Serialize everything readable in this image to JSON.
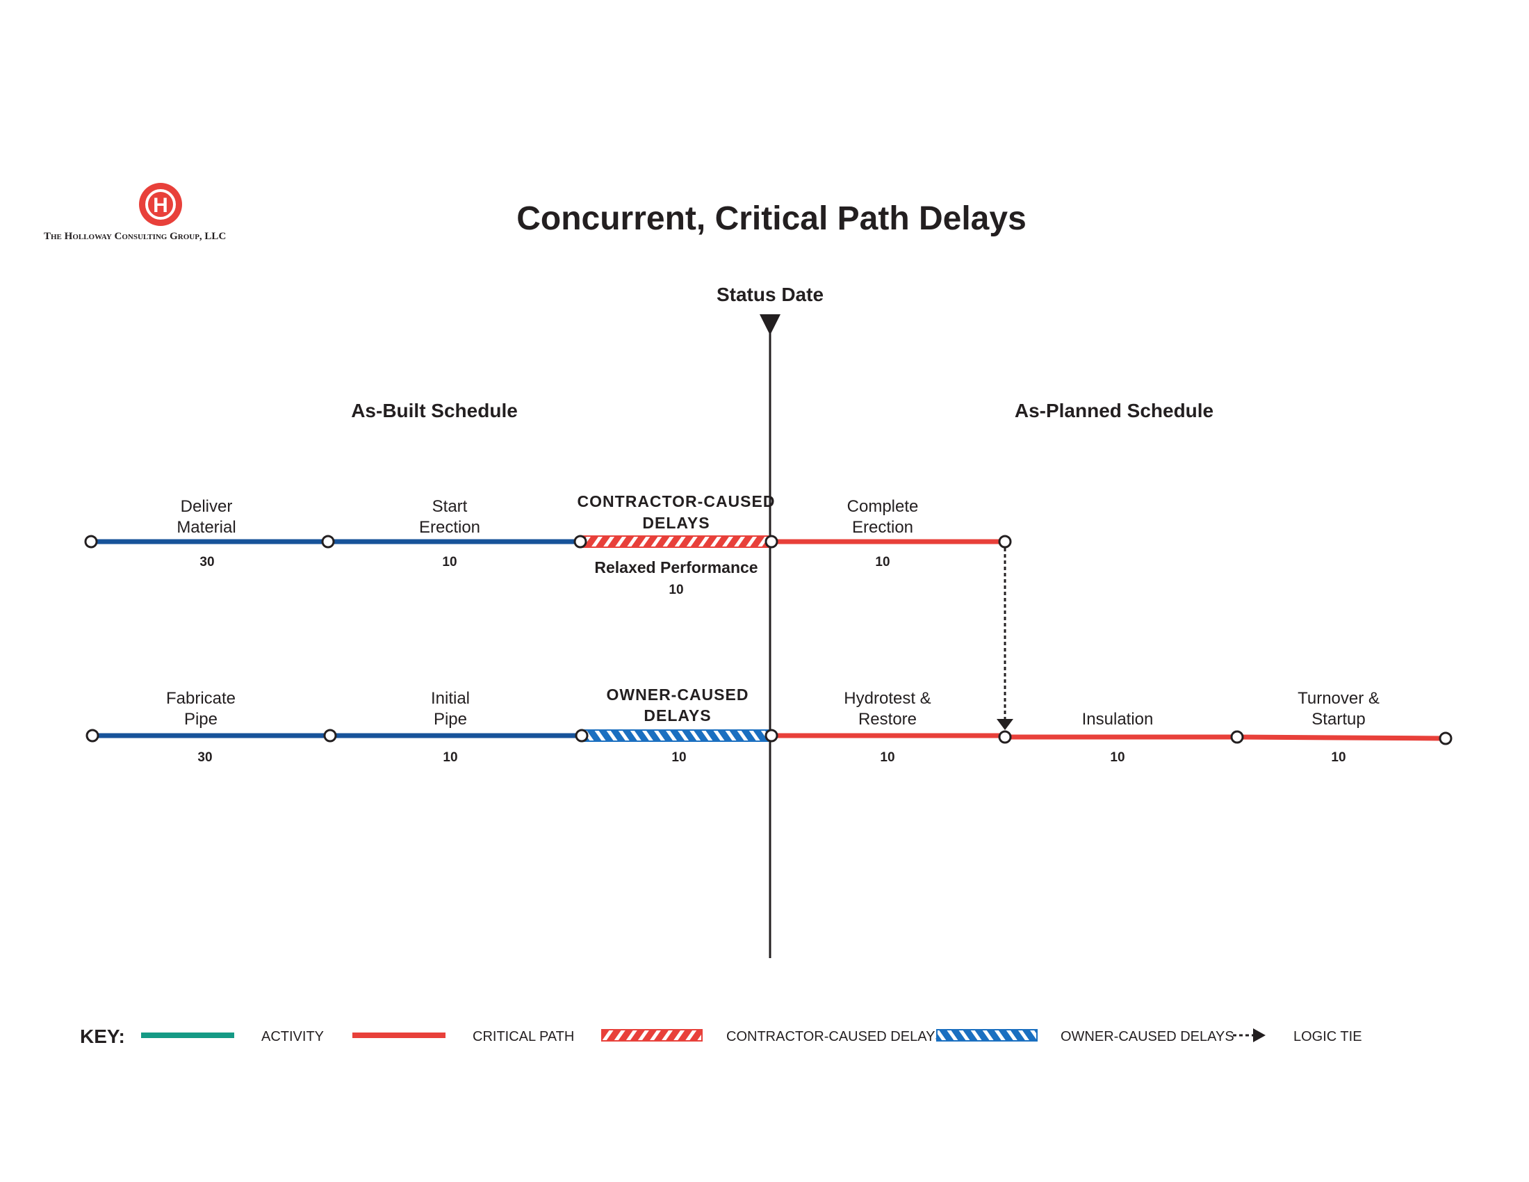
{
  "brand": {
    "name": "The Holloway Consulting Group, LLC",
    "logo_letter": "H",
    "logo_color": "#e8403a"
  },
  "title": "Concurrent, Critical Path Delays",
  "status_date": {
    "label": "Status Date"
  },
  "sections": {
    "as_built": "As-Built Schedule",
    "as_planned": "As-Planned Schedule"
  },
  "colors": {
    "activity_blue": "#17539a",
    "critical_red": "#e8403a",
    "owner_blue": "#1a6fc0",
    "key_activity": "#159a85",
    "ink": "#231f20"
  },
  "row1": {
    "deliver_material": {
      "label1": "Deliver",
      "label2": "Material",
      "duration": "30"
    },
    "start_erection": {
      "label1": "Start",
      "label2": "Erection",
      "duration": "10"
    },
    "contractor_delays": {
      "label1": "CONTRACTOR-CAUSED",
      "label2": "DELAYS",
      "sublabel": "Relaxed Performance",
      "duration": "10"
    },
    "complete_erection": {
      "label1": "Complete",
      "label2": "Erection",
      "duration": "10"
    }
  },
  "row2": {
    "fabricate_pipe": {
      "label1": "Fabricate",
      "label2": "Pipe",
      "duration": "30"
    },
    "initial_pipe": {
      "label1": "Initial",
      "label2": "Pipe",
      "duration": "10"
    },
    "owner_delays": {
      "label1": "OWNER-CAUSED",
      "label2": "DELAYS",
      "duration": "10"
    },
    "hydrotest": {
      "label1": "Hydrotest &",
      "label2": "Restore",
      "duration": "10"
    },
    "insulation": {
      "label1": "Insulation",
      "duration": "10"
    },
    "turnover": {
      "label1": "Turnover &",
      "label2": "Startup",
      "duration": "10"
    }
  },
  "key": {
    "heading": "KEY:",
    "activity": "ACTIVITY",
    "critical_path": "CRITICAL PATH",
    "contractor_delays": "CONTRACTOR-CAUSED DELAYS",
    "owner_delays": "OWNER-CAUSED DELAYS",
    "logic_tie": "LOGIC TIE"
  }
}
